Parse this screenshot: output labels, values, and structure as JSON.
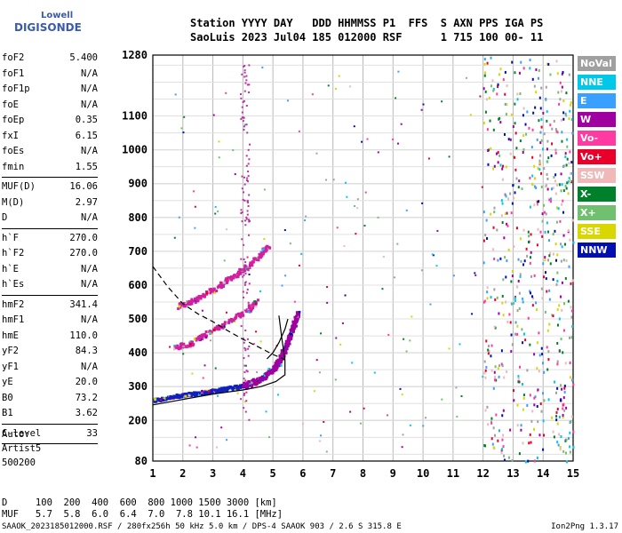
{
  "logo": {
    "line1": "Lowell",
    "line2": "DIGISONDE"
  },
  "header": {
    "labels": "Station YYYY DAY   DDD HHMMSS P1  FFS  S AXN PPS IGA PS",
    "values": "SaoLuis 2023 Jul04 185 012000 RSF      1 715 100 00- 11"
  },
  "scaled": [
    {
      "key": "foF2",
      "value": "5.400"
    },
    {
      "key": "foF1",
      "value": "N/A"
    },
    {
      "key": "foF1p",
      "value": "N/A"
    },
    {
      "key": "foE",
      "value": "N/A"
    },
    {
      "key": "foEp",
      "value": "0.35"
    },
    {
      "key": "fxI",
      "value": "6.15"
    },
    {
      "key": "foEs",
      "value": "N/A"
    },
    {
      "key": "fmin",
      "value": "1.55"
    },
    {
      "key": "MUF(D)",
      "value": "16.06",
      "sep": true
    },
    {
      "key": "M(D)",
      "value": "2.97"
    },
    {
      "key": "D",
      "value": "N/A"
    },
    {
      "key": "h`F",
      "value": "270.0",
      "sep": true
    },
    {
      "key": "h`F2",
      "value": "270.0"
    },
    {
      "key": "h`E",
      "value": "N/A"
    },
    {
      "key": "h`Es",
      "value": "N/A"
    },
    {
      "key": "hmF2",
      "value": "341.4",
      "sep": true
    },
    {
      "key": "hmF1",
      "value": "N/A"
    },
    {
      "key": "hmE",
      "value": "110.0"
    },
    {
      "key": "yF2",
      "value": "84.3"
    },
    {
      "key": "yF1",
      "value": "N/A"
    },
    {
      "key": "yE",
      "value": "20.0"
    },
    {
      "key": "B0",
      "value": "73.2"
    },
    {
      "key": "B1",
      "value": "3.62"
    },
    {
      "key": "C-level",
      "value": "33",
      "sep": true
    }
  ],
  "auto": {
    "line1": "Auto:",
    "line2": "Artist5",
    "line3": "500200"
  },
  "muf_table": {
    "d_line": "D     100  200  400  600  800 1000 1500 3000 [km]",
    "muf_line": "MUF   5.7  5.8  6.0  6.4  7.0  7.8 10.1 16.1 [MHz]"
  },
  "footer": "SAAOK_2023185012000.RSF / 280fx256h 50 kHz 5.0 km / DPS-4 SAAOK 903 / 2.6 S 315.8 E",
  "version": "Ion2Png 1.3.17",
  "legend": [
    {
      "label": "NoVal",
      "color": "#a0a0a0"
    },
    {
      "label": "NNE",
      "color": "#00c8e8"
    },
    {
      "label": "E",
      "color": "#3aa0ff"
    },
    {
      "label": "W",
      "color": "#a000a0"
    },
    {
      "label": "Vo-",
      "color": "#ff3aa0"
    },
    {
      "label": "Vo+",
      "color": "#e8002a"
    },
    {
      "label": "SSW",
      "color": "#f0b8b8"
    },
    {
      "label": "X-",
      "color": "#00802a"
    },
    {
      "label": "X+",
      "color": "#70c070"
    },
    {
      "label": "SSE",
      "color": "#d8d800"
    },
    {
      "label": "NNW",
      "color": "#0010b0"
    }
  ],
  "chart_data": {
    "type": "scatter",
    "title": "",
    "xlabel": "",
    "ylabel": "",
    "xlim": [
      1,
      15
    ],
    "ylim": [
      80,
      1280
    ],
    "x_ticks": [
      1,
      2,
      3,
      4,
      5,
      6,
      7,
      8,
      9,
      10,
      11,
      12,
      13,
      14,
      15
    ],
    "y_ticks": [
      80,
      200,
      300,
      400,
      500,
      600,
      700,
      800,
      900,
      1000,
      1100,
      1280
    ],
    "grid": true,
    "trace_f2": [
      [
        1.0,
        262
      ],
      [
        1.5,
        272
      ],
      [
        2.0,
        278
      ],
      [
        2.5,
        284
      ],
      [
        3.0,
        290
      ],
      [
        3.5,
        298
      ],
      [
        4.0,
        305
      ],
      [
        4.5,
        322
      ],
      [
        5.0,
        355
      ],
      [
        5.2,
        380
      ],
      [
        5.4,
        420
      ],
      [
        5.6,
        470
      ],
      [
        5.8,
        520
      ]
    ],
    "trace_2hop": [
      [
        1.7,
        420
      ],
      [
        2.2,
        430
      ],
      [
        2.8,
        460
      ],
      [
        3.4,
        490
      ],
      [
        4.0,
        520
      ],
      [
        4.5,
        560
      ]
    ],
    "trace_3hop": [
      [
        1.8,
        540
      ],
      [
        2.4,
        560
      ],
      [
        3.0,
        590
      ],
      [
        3.5,
        620
      ],
      [
        4.0,
        650
      ],
      [
        4.5,
        690
      ],
      [
        4.8,
        720
      ]
    ],
    "profile_curve": [
      [
        1.0,
        246
      ],
      [
        2.0,
        262
      ],
      [
        3.0,
        278
      ],
      [
        4.0,
        290
      ],
      [
        4.6,
        300
      ],
      [
        5.1,
        315
      ],
      [
        5.4,
        335
      ],
      [
        5.4,
        380
      ],
      [
        5.3,
        440
      ],
      [
        5.2,
        510
      ]
    ],
    "profile_curve_2": [
      [
        4.8,
        382
      ],
      [
        5.0,
        400
      ],
      [
        5.2,
        430
      ],
      [
        5.4,
        470
      ],
      [
        5.5,
        500
      ]
    ],
    "dashed_curve": [
      [
        1.0,
        655
      ],
      [
        1.5,
        595
      ],
      [
        2.0,
        545
      ],
      [
        2.5,
        515
      ],
      [
        3.0,
        492
      ],
      [
        3.5,
        465
      ],
      [
        4.0,
        440
      ],
      [
        4.5,
        418
      ],
      [
        5.0,
        395
      ],
      [
        5.4,
        380
      ]
    ]
  }
}
